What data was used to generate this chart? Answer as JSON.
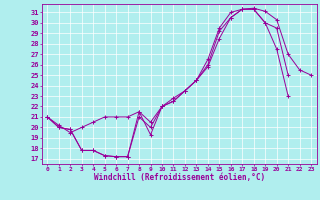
{
  "xlabel": "Windchill (Refroidissement éolien,°C)",
  "xlim": [
    -0.5,
    23.5
  ],
  "ylim": [
    16.5,
    31.8
  ],
  "xticks": [
    0,
    1,
    2,
    3,
    4,
    5,
    6,
    7,
    8,
    9,
    10,
    11,
    12,
    13,
    14,
    15,
    16,
    17,
    18,
    19,
    20,
    21,
    22,
    23
  ],
  "yticks": [
    17,
    18,
    19,
    20,
    21,
    22,
    23,
    24,
    25,
    26,
    27,
    28,
    29,
    30,
    31
  ],
  "line_color": "#990099",
  "bg_color": "#b0eeee",
  "grid_color": "#ffffff",
  "line1_x": [
    0,
    1,
    2,
    3,
    4,
    5,
    6,
    7,
    8,
    9,
    10,
    11,
    12,
    13,
    14,
    15,
    16,
    17,
    18,
    19,
    20,
    21
  ],
  "line1_y": [
    21.0,
    20.0,
    19.8,
    17.8,
    17.8,
    17.3,
    17.2,
    17.2,
    21.5,
    19.3,
    22.0,
    22.5,
    23.5,
    24.5,
    26.0,
    29.2,
    30.5,
    31.3,
    31.3,
    30.0,
    29.5,
    25.0
  ],
  "line2_x": [
    0,
    1,
    2,
    3,
    4,
    5,
    6,
    7,
    8,
    9,
    10,
    11,
    12,
    13,
    14,
    15,
    16,
    17,
    18,
    19,
    20,
    21
  ],
  "line2_y": [
    21.0,
    20.0,
    19.8,
    17.8,
    17.8,
    17.3,
    17.2,
    17.2,
    21.0,
    20.0,
    22.0,
    22.5,
    23.5,
    24.5,
    25.8,
    28.5,
    30.5,
    31.3,
    31.3,
    30.0,
    27.5,
    23.0
  ],
  "line3_x": [
    0,
    1,
    2,
    3,
    4,
    5,
    6,
    7,
    8,
    9,
    10,
    11,
    12,
    13,
    14,
    15,
    16,
    17,
    18,
    19,
    20,
    21,
    22,
    23
  ],
  "line3_y": [
    21.0,
    20.2,
    19.5,
    20.0,
    20.5,
    21.0,
    21.0,
    21.0,
    21.5,
    20.5,
    22.0,
    22.8,
    23.5,
    24.5,
    26.5,
    29.5,
    31.0,
    31.3,
    31.4,
    31.1,
    30.3,
    27.0,
    25.5,
    25.0
  ]
}
